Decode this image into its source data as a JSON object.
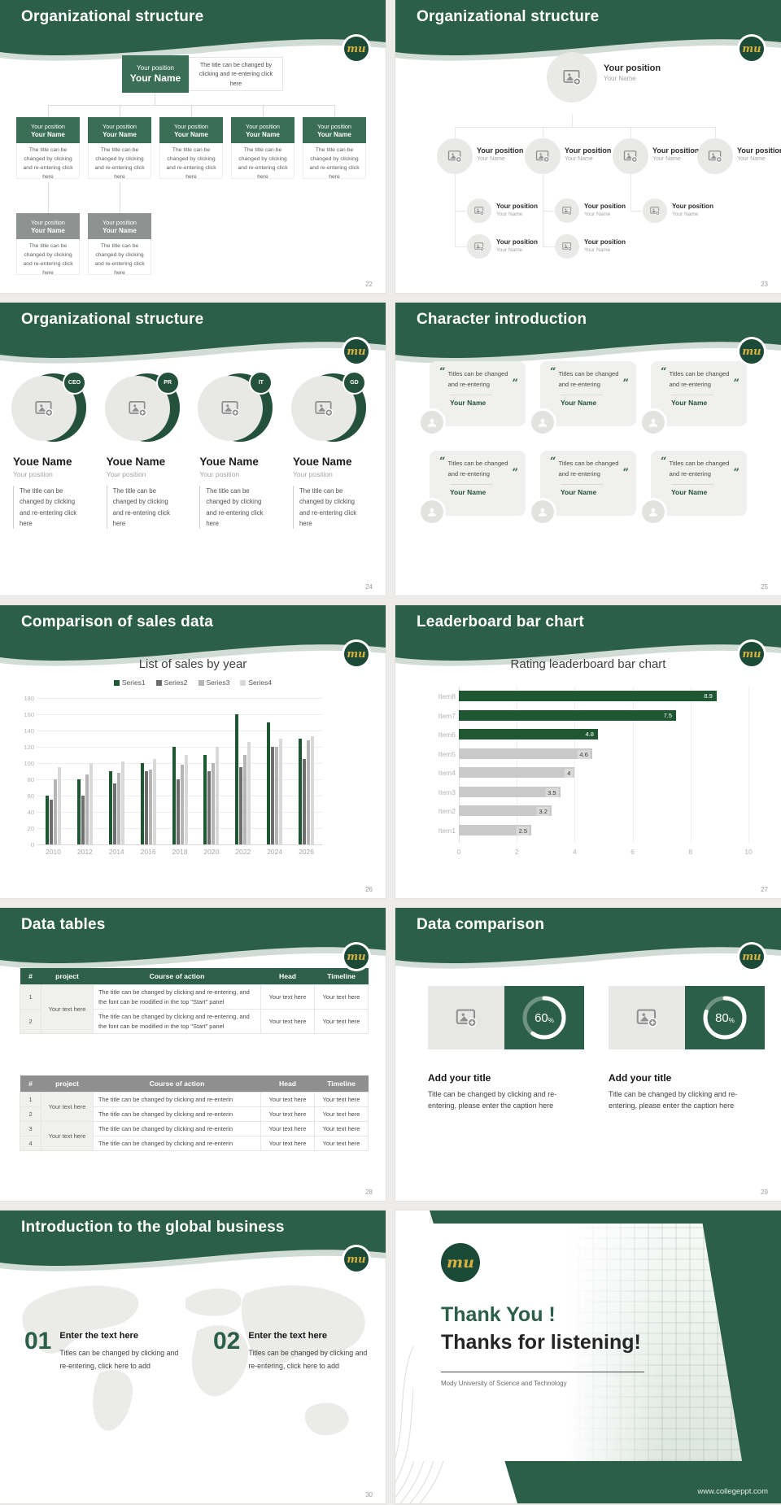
{
  "theme": {
    "green": "#2c5f4a",
    "box_green": "#3a6e57",
    "dark_green": "#24513c",
    "gold": "#d8b13f",
    "bar_green": "#1f5733",
    "bar_gray": "#c9c9c9",
    "table_green": "#2d5f4a",
    "table_gray": "#8f8f8f"
  },
  "slides": {
    "org1": {
      "title": "Organizational structure",
      "page": "22",
      "position_label": "Your position",
      "name_label": "Your Name",
      "root_note": "The title can be changed by clicking and re-entering click here",
      "box_note": "The title can be changed by clicking and re-entering click here",
      "row1_count": 5,
      "row2_count": 2
    },
    "org2": {
      "title": "Organizational structure",
      "page": "23",
      "position_label": "Your position",
      "name_label": "Your Name",
      "level2_count": 4,
      "level3_count": 3,
      "level4_count": 2
    },
    "org3": {
      "title": "Organizational structure",
      "page": "24",
      "badges": [
        "CEO",
        "PR",
        "IT",
        "GD"
      ],
      "member_name": "Youe Name",
      "member_position": "Your position",
      "note": "The title can be changed by clicking and re-entering click here"
    },
    "characters": {
      "title": "Character introduction",
      "page": "25",
      "quote": "Titles can be changed and re-entering",
      "name": "Your Name",
      "card_count": 6
    },
    "sales": {
      "title": "Comparison of sales data",
      "page": "26"
    },
    "leaderboard": {
      "title": "Leaderboard bar chart",
      "page": "27"
    },
    "tables": {
      "title": "Data tables",
      "page": "28",
      "columns": [
        "#",
        "project",
        "Course of action",
        "Head",
        "Timeline"
      ],
      "table1": {
        "rows": [
          {
            "num": "1",
            "project": "Your text here",
            "project_span": 2,
            "action": "The title can be changed by clicking and re-entering, and the font can be modified in the top \"Start\" panel",
            "head": "Your text here",
            "timeline": "Your text here"
          },
          {
            "num": "2",
            "action": "The title can be changed by clicking and re-entering, and the font can be modified in the top \"Start\" panel",
            "head": "Your text here",
            "timeline": "Your text here"
          }
        ]
      },
      "table2": {
        "rows": [
          {
            "num": "1",
            "project": "Your text here",
            "project_span": 2,
            "action": "The title can be changed by clicking and re-enterin",
            "head": "Your text here",
            "timeline": "Your text here"
          },
          {
            "num": "2",
            "action": "The title can be changed by clicking and re-enterin",
            "head": "Your text here",
            "timeline": "Your text here"
          },
          {
            "num": "3",
            "project": "Your text here",
            "project_span": 2,
            "action": "The title can be changed by clicking and re-enterin",
            "head": "Your text here",
            "timeline": "Your text here"
          },
          {
            "num": "4",
            "action": "The title can be changed by clicking and re-enterin",
            "head": "Your text here",
            "timeline": "Your text here"
          }
        ]
      }
    },
    "comparison": {
      "title": "Data comparison",
      "page": "29",
      "item_title": "Add your title",
      "caption": "Title can be changed by clicking and re-entering, please enter the caption here",
      "items": [
        {
          "percent": 60
        },
        {
          "percent": 80
        }
      ]
    },
    "global": {
      "title": "Introduction to the global business",
      "page": "30",
      "items": [
        {
          "num": "01"
        },
        {
          "num": "02"
        }
      ],
      "item_title": "Enter the text here",
      "caption": "Titles can be changed by clicking and re-entering, click here to add"
    },
    "thanks": {
      "logo_text": "mu",
      "heading1": "Thank You !",
      "heading2": "Thanks for listening!",
      "subtitle": "Mody University of Science and Technology",
      "url": "www.collegeppt.com"
    },
    "logo_text": "mu"
  },
  "chart_data": [
    {
      "type": "bar",
      "title": "List of sales by year",
      "categories": [
        "2010",
        "2012",
        "2014",
        "2016",
        "2018",
        "2020",
        "2022",
        "2024",
        "2026"
      ],
      "series": [
        {
          "name": "Series1",
          "color": "#1f5733",
          "values": [
            60,
            80,
            90,
            100,
            120,
            110,
            160,
            150,
            130
          ]
        },
        {
          "name": "Series2",
          "color": "#6e6e6e",
          "values": [
            55,
            60,
            75,
            90,
            80,
            90,
            95,
            120,
            105
          ]
        },
        {
          "name": "Series3",
          "color": "#b5b5b5",
          "values": [
            80,
            86,
            88,
            92,
            98,
            100,
            110,
            120,
            128
          ]
        },
        {
          "name": "Series4",
          "color": "#d9d9d9",
          "values": [
            95,
            100,
            102,
            105,
            110,
            120,
            126,
            130,
            133
          ]
        }
      ],
      "ylim": [
        0,
        180
      ],
      "ytick_step": 20,
      "grid": true,
      "legend_position": "top"
    },
    {
      "type": "bar",
      "orientation": "horizontal",
      "title": "Rating leaderboard bar chart",
      "categories": [
        "Item8",
        "Item7",
        "Item6",
        "Item5",
        "Item4",
        "Item3",
        "Item2",
        "Item1"
      ],
      "values": [
        8.9,
        7.5,
        4.8,
        4.6,
        4,
        3.5,
        3.2,
        2.5
      ],
      "colors": [
        "#1f5733",
        "#1f5733",
        "#1f5733",
        "#c9c9c9",
        "#c9c9c9",
        "#c9c9c9",
        "#c9c9c9",
        "#c9c9c9"
      ],
      "xlim": [
        0,
        10
      ],
      "xtick_step": 2,
      "grid": true
    }
  ]
}
